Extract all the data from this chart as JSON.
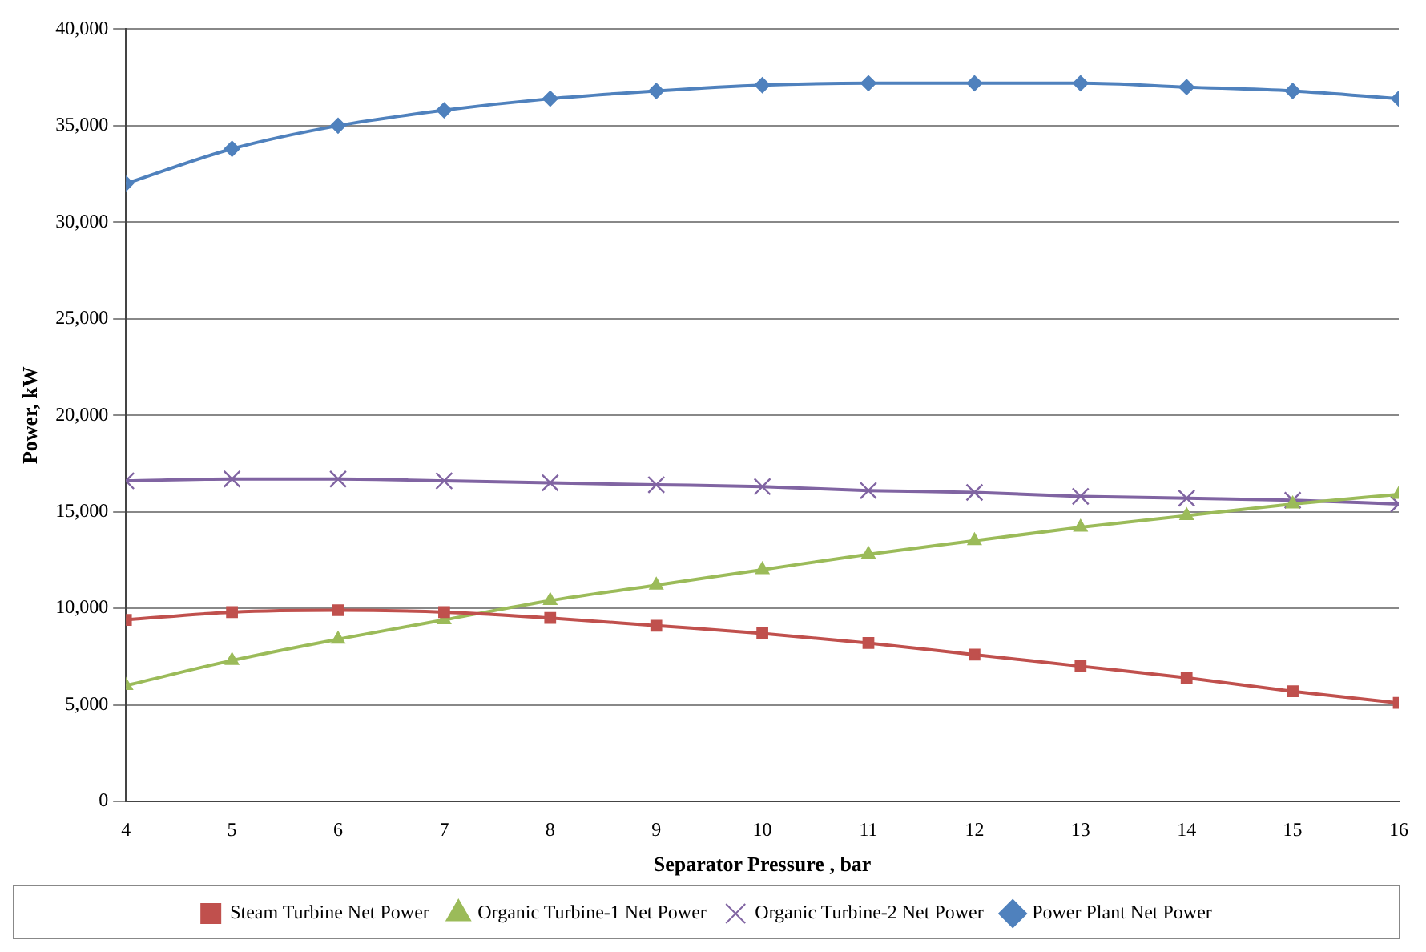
{
  "chart_data": {
    "type": "line",
    "xlabel": "Separator Pressure , bar",
    "ylabel": "Power, kW",
    "x": [
      4,
      5,
      6,
      7,
      8,
      9,
      10,
      11,
      12,
      13,
      14,
      15,
      16
    ],
    "xlim": [
      4,
      16
    ],
    "xticks": [
      4,
      5,
      6,
      7,
      8,
      9,
      10,
      11,
      12,
      13,
      14,
      15,
      16
    ],
    "ylim": [
      0,
      40000
    ],
    "yticks": [
      {
        "value": 0,
        "label": "0"
      },
      {
        "value": 5000,
        "label": "5,000"
      },
      {
        "value": 10000,
        "label": "10,000"
      },
      {
        "value": 15000,
        "label": "15,000"
      },
      {
        "value": 20000,
        "label": "20,000"
      },
      {
        "value": 25000,
        "label": "25,000"
      },
      {
        "value": 30000,
        "label": "30,000"
      },
      {
        "value": 35000,
        "label": "35,000"
      },
      {
        "value": 40000,
        "label": "40,000"
      }
    ],
    "grid": "y",
    "legend": "bottom",
    "series": [
      {
        "name": "Steam Turbine Net Power",
        "color": "#c0504d",
        "marker": "square",
        "values": [
          9400,
          9800,
          9900,
          9800,
          9500,
          9100,
          8700,
          8200,
          7600,
          7000,
          6400,
          5700,
          5100
        ]
      },
      {
        "name": "Organic Turbine-1 Net Power",
        "color": "#9bbb59",
        "marker": "triangle",
        "values": [
          6000,
          7300,
          8400,
          9400,
          10400,
          11200,
          12000,
          12800,
          13500,
          14200,
          14800,
          15400,
          15900
        ]
      },
      {
        "name": "Organic Turbine-2 Net Power",
        "color": "#8064a2",
        "marker": "cross",
        "values": [
          16600,
          16700,
          16700,
          16600,
          16500,
          16400,
          16300,
          16100,
          16000,
          15800,
          15700,
          15600,
          15400
        ]
      },
      {
        "name": "Power Plant Net Power",
        "color": "#4f81bd",
        "marker": "diamond",
        "values": [
          32000,
          33800,
          35000,
          35800,
          36400,
          36800,
          37100,
          37200,
          37200,
          37200,
          37000,
          36800,
          36400
        ]
      }
    ]
  }
}
